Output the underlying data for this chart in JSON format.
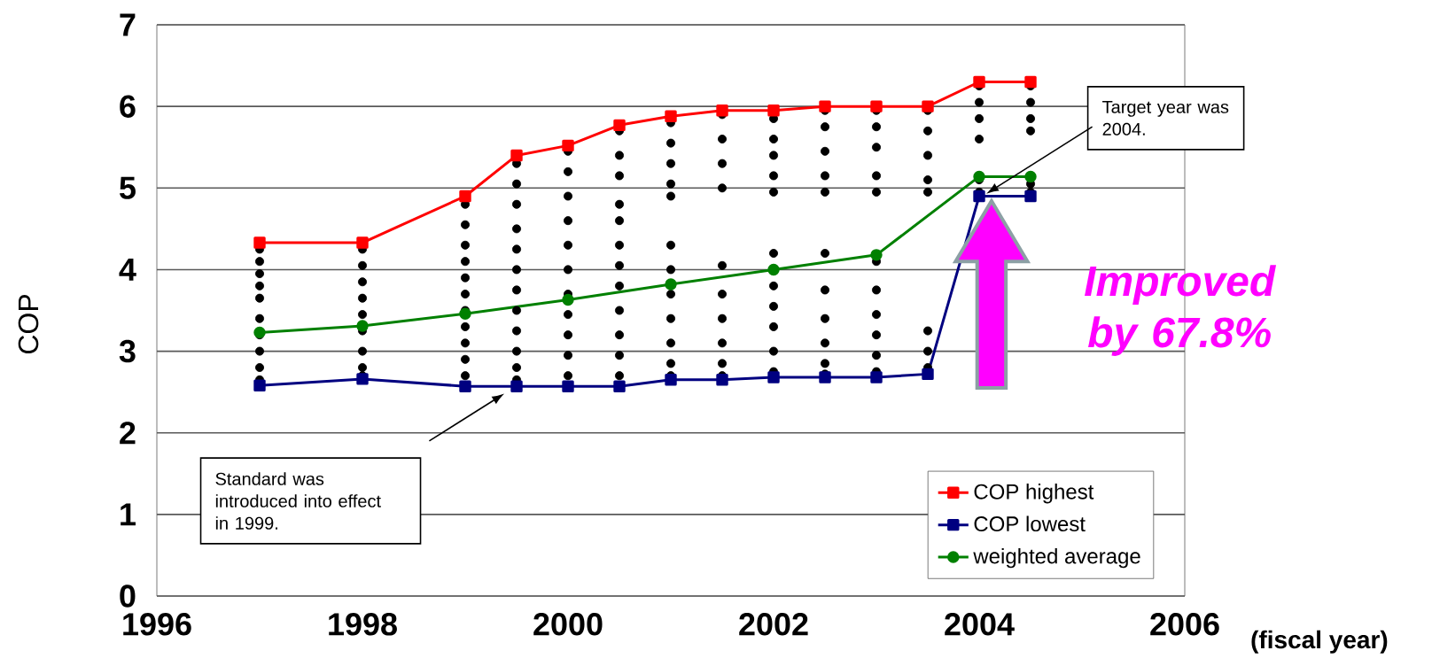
{
  "chart_data": {
    "type": "line",
    "xlabel": "(fiscal year)",
    "ylabel": "COP",
    "xlim": [
      1996,
      2006
    ],
    "ylim": [
      0,
      7
    ],
    "xticks": [
      1996,
      1998,
      2000,
      2002,
      2004,
      2006
    ],
    "yticks": [
      0,
      1,
      2,
      3,
      4,
      5,
      6,
      7
    ],
    "grid": "y",
    "legend": "bottom right",
    "series": [
      {
        "type": "scatter",
        "color": "#000000",
        "marker": "circle",
        "x": [
          1997,
          1997,
          1997,
          1997,
          1997,
          1997,
          1997,
          1997,
          1997,
          1997,
          1998,
          1998,
          1998,
          1998,
          1998,
          1998,
          1998,
          1998,
          1998,
          1999,
          1999,
          1999,
          1999,
          1999,
          1999,
          1999,
          1999,
          1999,
          1999,
          1999,
          1999.5,
          1999.5,
          1999.5,
          1999.5,
          1999.5,
          1999.5,
          1999.5,
          1999.5,
          1999.5,
          1999.5,
          1999.5,
          1999.5,
          2000,
          2000,
          2000,
          2000,
          2000,
          2000,
          2000,
          2000,
          2000,
          2000,
          2000,
          2000.5,
          2000.5,
          2000.5,
          2000.5,
          2000.5,
          2000.5,
          2000.5,
          2000.5,
          2000.5,
          2000.5,
          2000.5,
          2000.5,
          2001,
          2001,
          2001,
          2001,
          2001,
          2001,
          2001,
          2001,
          2001,
          2001,
          2001,
          2001,
          2001.5,
          2001.5,
          2001.5,
          2001.5,
          2001.5,
          2001.5,
          2001.5,
          2001.5,
          2001.5,
          2001.5,
          2002,
          2002,
          2002,
          2002,
          2002,
          2002,
          2002,
          2002,
          2002,
          2002,
          2002,
          2002.5,
          2002.5,
          2002.5,
          2002.5,
          2002.5,
          2002.5,
          2002.5,
          2002.5,
          2002.5,
          2002.5,
          2002.5,
          2003,
          2003,
          2003,
          2003,
          2003,
          2003,
          2003,
          2003,
          2003,
          2003,
          2003,
          2003.5,
          2003.5,
          2003.5,
          2003.5,
          2003.5,
          2003.5,
          2003.5,
          2003.5,
          2004,
          2004,
          2004,
          2004,
          2004,
          2004,
          2004.5,
          2004.5,
          2004.5,
          2004.5,
          2004.5,
          2004.5
        ],
        "values": [
          4.25,
          4.1,
          3.95,
          3.8,
          3.65,
          3.4,
          3.2,
          3.0,
          2.8,
          2.65,
          4.25,
          4.05,
          3.85,
          3.65,
          3.45,
          3.25,
          3.0,
          2.8,
          2.7,
          4.8,
          4.55,
          4.3,
          4.1,
          3.9,
          3.7,
          3.5,
          3.3,
          3.1,
          2.9,
          2.7,
          5.3,
          5.05,
          4.8,
          4.5,
          4.25,
          4.0,
          3.75,
          3.5,
          3.25,
          3.0,
          2.8,
          2.65,
          5.45,
          5.2,
          4.9,
          4.6,
          4.3,
          4.0,
          3.7,
          3.45,
          3.2,
          2.95,
          2.7,
          5.7,
          5.4,
          5.15,
          4.8,
          4.6,
          4.3,
          4.05,
          3.8,
          3.5,
          3.2,
          2.95,
          2.7,
          5.8,
          5.55,
          5.3,
          5.05,
          4.9,
          4.3,
          4.0,
          3.7,
          3.4,
          3.1,
          2.85,
          2.7,
          5.9,
          5.6,
          5.3,
          5.0,
          4.05,
          3.7,
          3.4,
          3.1,
          2.85,
          2.7,
          5.85,
          5.6,
          5.4,
          5.15,
          4.95,
          4.2,
          3.8,
          3.55,
          3.3,
          3.0,
          2.75,
          5.95,
          5.75,
          5.45,
          5.15,
          4.95,
          4.2,
          3.75,
          3.4,
          3.1,
          2.85,
          2.72,
          5.95,
          5.75,
          5.5,
          5.15,
          4.95,
          4.1,
          3.75,
          3.45,
          3.2,
          2.95,
          2.75,
          5.95,
          5.7,
          5.4,
          5.1,
          4.95,
          3.25,
          3.0,
          2.8,
          6.25,
          6.05,
          5.85,
          5.6,
          5.1,
          4.95,
          6.25,
          6.05,
          5.85,
          5.7,
          5.05,
          4.95
        ]
      },
      {
        "name": "COP highest",
        "color": "#ff0000",
        "marker": "square",
        "x": [
          1997,
          1998,
          1999,
          1999.5,
          2000,
          2000.5,
          2001,
          2001.5,
          2002,
          2002.5,
          2003,
          2003.5,
          2004,
          2004.5
        ],
        "values": [
          4.33,
          4.33,
          4.9,
          5.4,
          5.52,
          5.77,
          5.88,
          5.95,
          5.95,
          6.0,
          6.0,
          6.0,
          6.3,
          6.3
        ]
      },
      {
        "name": "COP lowest",
        "color": "#000080",
        "marker": "square",
        "x": [
          1997,
          1998,
          1999,
          1999.5,
          2000,
          2000.5,
          2001,
          2001.5,
          2002,
          2002.5,
          2003,
          2003.5,
          2004,
          2004.5
        ],
        "values": [
          2.58,
          2.66,
          2.57,
          2.57,
          2.57,
          2.57,
          2.65,
          2.65,
          2.68,
          2.68,
          2.68,
          2.72,
          4.9,
          4.9
        ]
      },
      {
        "name": "weighted average",
        "color": "#008000",
        "marker": "circle",
        "x": [
          1997,
          1998,
          1999,
          2000,
          2001,
          2002,
          2003,
          2004,
          2004.5
        ],
        "values": [
          3.23,
          3.31,
          3.46,
          3.63,
          3.82,
          4.0,
          4.18,
          5.14,
          5.14
        ]
      }
    ],
    "annotations": [
      "Standard was introduced into effect in 1999.",
      "Target year was 2004.",
      "Improved by 67.8%"
    ]
  }
}
